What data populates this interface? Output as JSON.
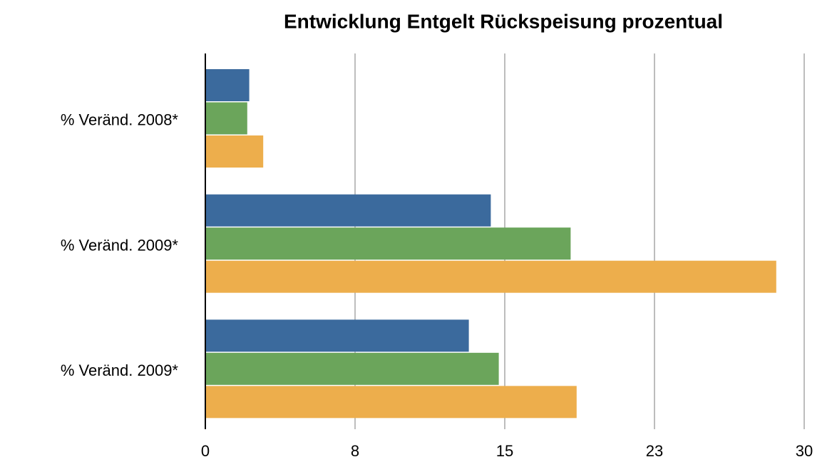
{
  "chart_data": {
    "type": "bar",
    "orientation": "horizontal",
    "title": "Entwicklung Entgelt Rückspeisung prozentual",
    "categories": [
      "% Veränd. 2008*",
      "% Veränd. 2009*",
      "% Veränd. 2009*"
    ],
    "series": [
      {
        "color": "#3b6a9d",
        "values": [
          2.2,
          14.3,
          13.2
        ]
      },
      {
        "color": "#6ba55b",
        "values": [
          2.1,
          18.3,
          14.7
        ]
      },
      {
        "color": "#edae4c",
        "values": [
          2.9,
          28.6,
          18.6
        ]
      }
    ],
    "xlim": [
      0,
      30
    ],
    "xticks": [
      0,
      {
        "value": 7.5,
        "label": "8"
      },
      15,
      {
        "value": 22.5,
        "label": "23"
      },
      30
    ],
    "grid": true
  }
}
